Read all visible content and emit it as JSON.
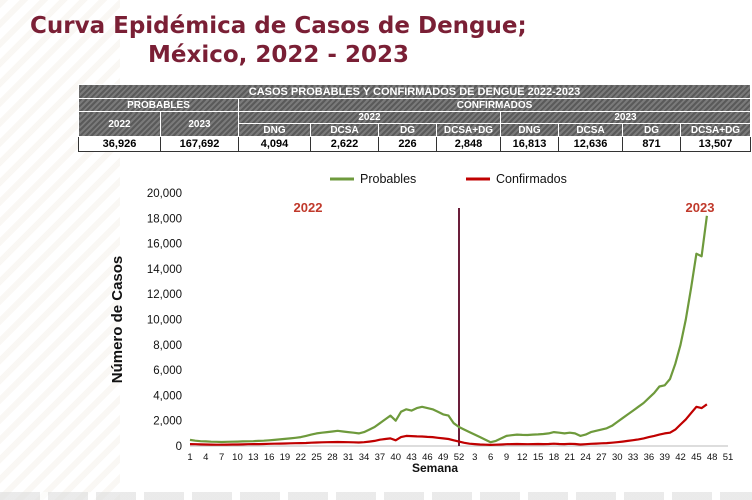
{
  "title_line1": "Curva Epidémica de Casos de Dengue;",
  "title_line2": "México, 2022 - 2023",
  "table": {
    "title": "CASOS PROBABLES Y CONFIRMADOS DE DENGUE 2022-2023",
    "probables_label": "PROBABLES",
    "confirmados_label": "CONFIRMADOS",
    "years": [
      "2022",
      "2023"
    ],
    "subcols": [
      "DNG",
      "DCSA",
      "DG",
      "DCSA+DG"
    ],
    "probables_values": [
      "36,926",
      "167,692"
    ],
    "confirmados_2022": [
      "4,094",
      "2,622",
      "226",
      "2,848"
    ],
    "confirmados_2023": [
      "16,813",
      "12,636",
      "871",
      "13,507"
    ]
  },
  "chart_data": {
    "type": "line",
    "ylabel": "Número de Casos",
    "xlabel": "Semana",
    "ylim": [
      0,
      20000
    ],
    "yticks": [
      0,
      2000,
      4000,
      6000,
      8000,
      10000,
      12000,
      14000,
      16000,
      18000,
      20000
    ],
    "ytick_labels": [
      "0",
      "2,000",
      "4,000",
      "6,000",
      "8,000",
      "10,000",
      "12,000",
      "14,000",
      "16,000",
      "18,000",
      "20,000"
    ],
    "xtick_labels": [
      "1",
      "4",
      "7",
      "10",
      "13",
      "16",
      "19",
      "22",
      "25",
      "28",
      "31",
      "34",
      "37",
      "40",
      "43",
      "46",
      "49",
      "52",
      "3",
      "6",
      "9",
      "12",
      "15",
      "18",
      "21",
      "24",
      "27",
      "30",
      "33",
      "36",
      "39",
      "42",
      "45",
      "48",
      "51"
    ],
    "year_labels": [
      "2022",
      "2023"
    ],
    "legend": [
      "Probables",
      "Confirmados"
    ],
    "legend_position": "top",
    "divider_at_week": 52,
    "colors": {
      "probables": "#6e9a3c",
      "confirmados": "#c00000",
      "divider": "#6b1e3a",
      "year_label": "#c0392b"
    },
    "series": [
      {
        "name": "Probables",
        "values": [
          480,
          420,
          380,
          360,
          340,
          330,
          320,
          330,
          340,
          350,
          360,
          370,
          380,
          400,
          420,
          450,
          480,
          520,
          560,
          600,
          650,
          700,
          800,
          900,
          1000,
          1050,
          1100,
          1150,
          1200,
          1150,
          1100,
          1050,
          1000,
          1100,
          1300,
          1500,
          1800,
          2100,
          2400,
          2000,
          2700,
          2900,
          2800,
          3000,
          3100,
          3000,
          2900,
          2700,
          2500,
          2400,
          1800,
          1500,
          1300,
          1100,
          900,
          700,
          500,
          300,
          400,
          600,
          800,
          850,
          900,
          880,
          870,
          900,
          920,
          950,
          1000,
          1100,
          1050,
          1000,
          1050,
          1000,
          800,
          900,
          1100,
          1200,
          1300,
          1400,
          1600,
          1900,
          2200,
          2500,
          2800,
          3100,
          3400,
          3800,
          4200,
          4700,
          4800,
          5300,
          6500,
          8000,
          10000,
          12500,
          15200,
          15000,
          18200
        ]
      },
      {
        "name": "Confirmados",
        "values": [
          150,
          140,
          130,
          120,
          110,
          100,
          100,
          110,
          120,
          120,
          130,
          140,
          150,
          150,
          160,
          170,
          180,
          190,
          200,
          210,
          220,
          230,
          240,
          260,
          280,
          290,
          300,
          310,
          320,
          310,
          300,
          290,
          280,
          300,
          350,
          400,
          500,
          550,
          600,
          450,
          700,
          800,
          780,
          760,
          750,
          720,
          700,
          650,
          600,
          550,
          450,
          350,
          250,
          180,
          150,
          120,
          100,
          90,
          100,
          120,
          140,
          150,
          160,
          150,
          140,
          150,
          160,
          150,
          160,
          180,
          160,
          150,
          170,
          160,
          120,
          140,
          170,
          190,
          210,
          230,
          260,
          300,
          350,
          400,
          460,
          520,
          600,
          700,
          800,
          900,
          1000,
          1050,
          1300,
          1700,
          2100,
          2600,
          3100,
          3000,
          3300
        ]
      }
    ]
  }
}
